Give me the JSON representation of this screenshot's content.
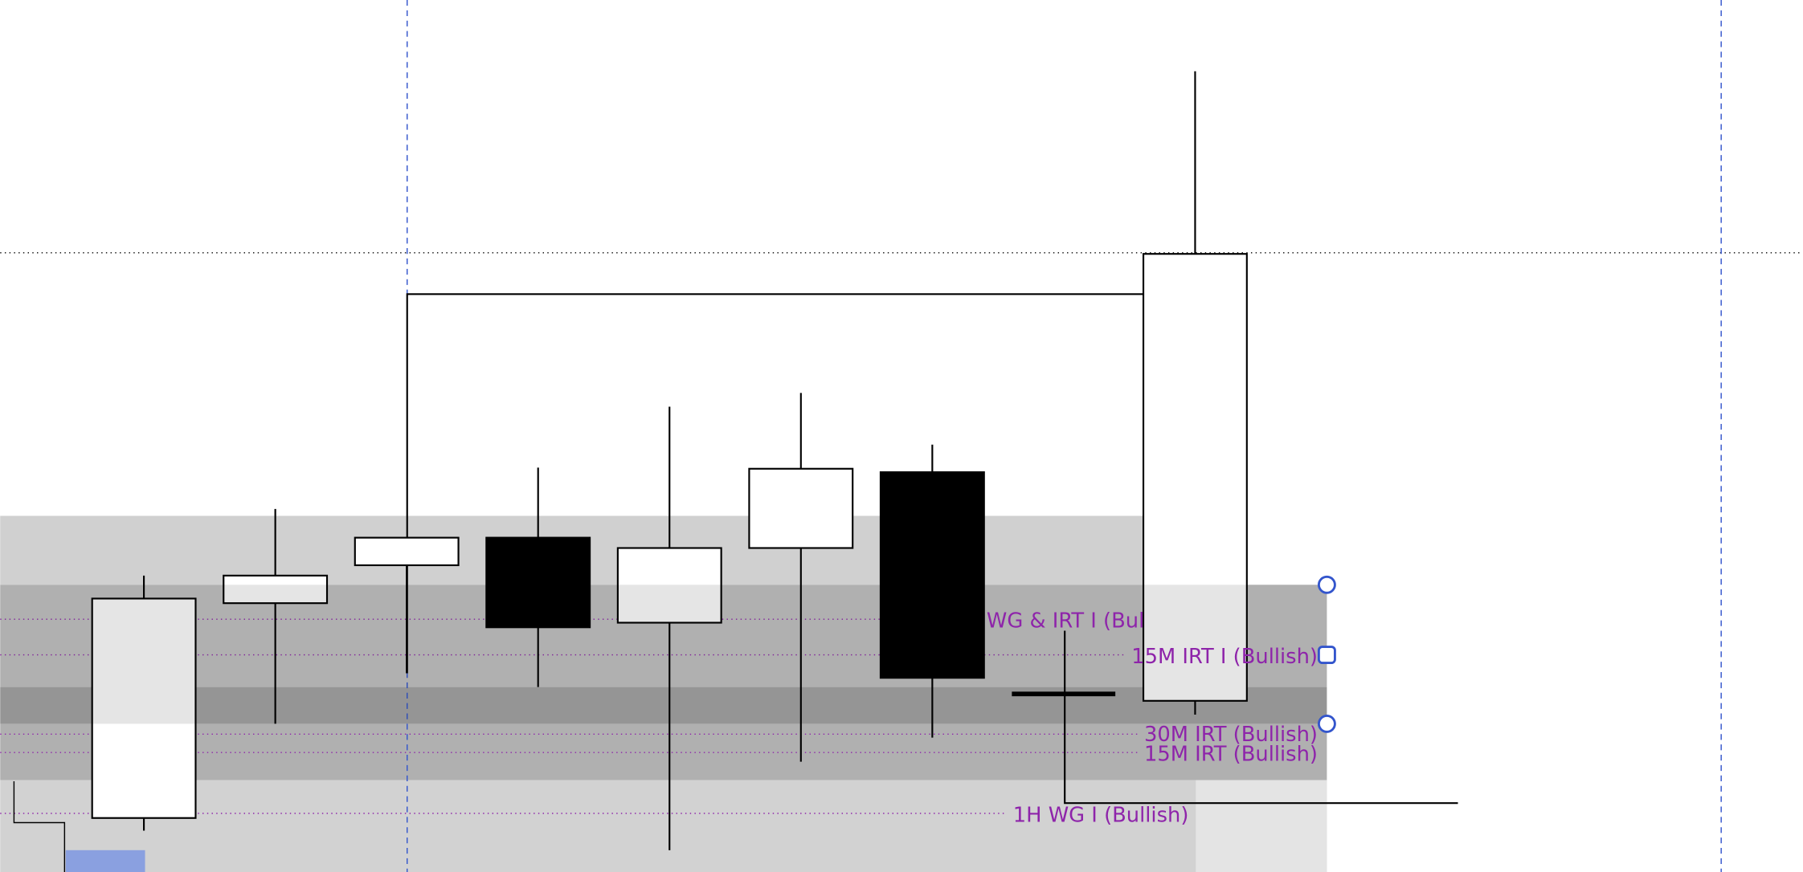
{
  "chart_data": {
    "type": "candlestick",
    "categories": [
      null,
      null,
      null,
      null,
      null,
      null,
      null,
      null,
      null
    ],
    "series": [
      {
        "open": [
          47,
          234,
          267,
          291,
          217,
          282,
          348,
          null,
          149
        ],
        "high": [
          258,
          316,
          291,
          352,
          405,
          417,
          372,
          null,
          697
        ],
        "low": [
          36,
          129,
          173,
          161,
          19,
          96,
          117,
          null,
          137
        ],
        "close": [
          238,
          258,
          291,
          213,
          282,
          351,
          169,
          null,
          538
        ]
      }
    ],
    "ylim": [
      0,
      759
    ],
    "annotations": [
      "WG & IRT I (Bul",
      "15M IRT I (Bullish)",
      "30M IRT (Bullish)",
      "15M IRT (Bullish)",
      "1H WG I (Bullish)"
    ]
  }
}
